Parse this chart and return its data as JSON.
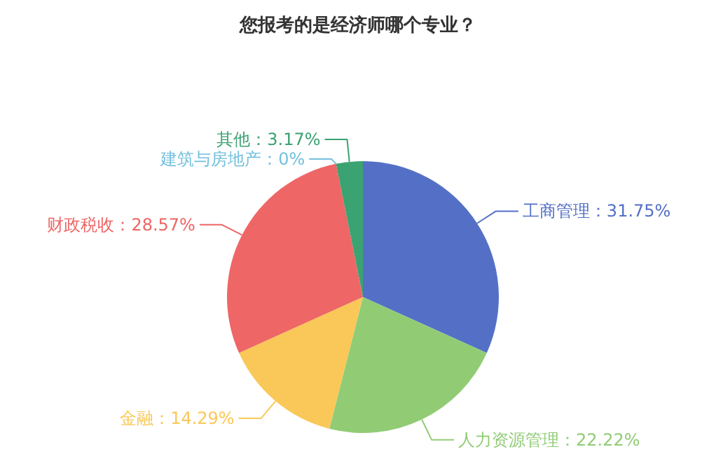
{
  "chart_data": {
    "type": "pie",
    "title": "您报考的是经济师哪个专业？",
    "categories": [
      "工商管理",
      "人力资源管理",
      "金融",
      "财政税收",
      "建筑与房地产",
      "其他"
    ],
    "values": [
      31.75,
      22.22,
      14.29,
      28.57,
      0,
      3.17
    ],
    "value_labels": [
      "31.75%",
      "22.22%",
      "14.29%",
      "28.57%",
      "0%",
      "3.17%"
    ],
    "colors": [
      "#5470c6",
      "#91cc75",
      "#fac858",
      "#ee6666",
      "#73c0de",
      "#3ba272"
    ]
  }
}
